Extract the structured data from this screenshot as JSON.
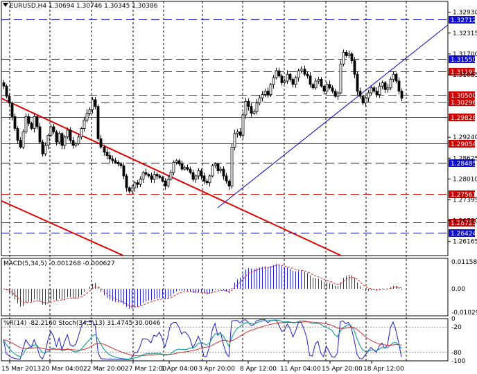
{
  "header": {
    "symbol": "EURUSD,H4",
    "open": "1.30694",
    "high": "1.30746",
    "low": "1.30345",
    "close": "1.30386"
  },
  "colors": {
    "red_line": "#e00000",
    "blue_line": "#0000cc",
    "red_tag": "#cc0000",
    "blue_tag": "#1010d0",
    "candle": "#000000",
    "macd_hist": "#2222dd",
    "macd_signal": "#dd2222",
    "wpr": "#1a1acc",
    "stoch_main": "#20a0a0",
    "stoch_signal": "#d03030"
  },
  "chart_data": [
    {
      "type": "candlestick",
      "title": "EURUSD,H4",
      "ylim": [
        1.2575,
        1.3325
      ],
      "price_axis_ticks": [
        "1.32930",
        "1.32315",
        "1.31700",
        "1.31085",
        "1.29240",
        "1.28625",
        "1.28010",
        "1.27395",
        "1.26780",
        "1.26165"
      ],
      "time_ticks": [
        "15 Mar 2013",
        "20 Mar 04:00",
        "22 Mar 20:00",
        "27 Mar 12:00",
        "1 Apr 04:00",
        "3 Apr 20:00",
        "8 Apr 12:00",
        "11 Apr 04:00",
        "15 Apr 20:00",
        "18 Apr 12:00"
      ],
      "horizontal_levels": [
        {
          "label": "1.32712",
          "value": 1.32712,
          "color": "blue"
        },
        {
          "label": "1.31550",
          "value": 1.3155,
          "color": "blue"
        },
        {
          "label": "1.31193",
          "value": 1.31193,
          "color": "red"
        },
        {
          "label": "1.30500",
          "value": 1.305,
          "color": "red"
        },
        {
          "label": "1.30296",
          "value": 1.30296,
          "color": "red"
        },
        {
          "label": "1.29828",
          "value": 1.29828,
          "color": "red"
        },
        {
          "label": "1.29054",
          "value": 1.29054,
          "color": "red"
        },
        {
          "label": "1.28485",
          "value": 1.28485,
          "color": "blue"
        },
        {
          "label": "1.27561",
          "value": 1.27561,
          "color": "red"
        },
        {
          "label": "1.26723",
          "value": 1.26723,
          "color": "red"
        },
        {
          "label": "1.26424",
          "value": 1.26424,
          "color": "blue"
        }
      ],
      "close_prices": [
        1.3075,
        1.3045,
        1.3025,
        1.2985,
        1.295,
        1.2915,
        1.2895,
        1.294,
        1.2985,
        1.2965,
        1.295,
        1.2985,
        1.2955,
        1.291,
        1.2875,
        1.29,
        1.293,
        1.2955,
        1.294,
        1.291,
        1.2935,
        1.29,
        1.2925,
        1.2945,
        1.2915,
        1.29,
        1.2905,
        1.2925,
        1.295,
        1.2975,
        1.2995,
        1.3005,
        1.3035,
        1.3015,
        1.292,
        1.2895,
        1.288,
        1.287,
        1.286,
        1.2855,
        1.285,
        1.2845,
        1.284,
        1.281,
        1.2775,
        1.2765,
        1.2775,
        1.279,
        1.2785,
        1.28,
        1.282,
        1.2815,
        1.281,
        1.28,
        1.2815,
        1.281,
        1.2805,
        1.2795,
        1.278,
        1.28,
        1.282,
        1.285,
        1.2855,
        1.2845,
        1.283,
        1.2835,
        1.283,
        1.282,
        1.28,
        1.281,
        1.2825,
        1.281,
        1.2795,
        1.279,
        1.281,
        1.284,
        1.2845,
        1.2825,
        1.283,
        1.281,
        1.2795,
        1.278,
        1.2895,
        1.2935,
        1.294,
        1.293,
        1.299,
        1.303,
        1.3015,
        1.2995,
        1.3,
        1.3025,
        1.304,
        1.305,
        1.306,
        1.305,
        1.308,
        1.31,
        1.312,
        1.3105,
        1.3085,
        1.309,
        1.311,
        1.3095,
        1.308,
        1.31,
        1.312,
        1.3125,
        1.311,
        1.3105,
        1.308,
        1.307,
        1.309,
        1.3095,
        1.3075,
        1.306,
        1.308,
        1.307,
        1.306,
        1.3045,
        1.3055,
        1.314,
        1.3175,
        1.3165,
        1.317,
        1.315,
        1.311,
        1.306,
        1.3045,
        1.3025,
        1.304,
        1.3055,
        1.307,
        1.306,
        1.305,
        1.3075,
        1.3085,
        1.3065,
        1.307,
        1.3095,
        1.311,
        1.309,
        1.306,
        1.3039
      ]
    },
    {
      "type": "line",
      "title": "MACD(5,34,5) -0.001268 -0.000627",
      "ylim": [
        -0.01029,
        0.011584
      ],
      "axis_labels": [
        "0.011584",
        "0.00",
        "-0.010290"
      ]
    },
    {
      "type": "line",
      "title": "%R(14) -82.2160 Stoch(34,5,13) 31.4745 30.0046",
      "ylim": [
        -100,
        0
      ],
      "axis_labels": [
        "0",
        "-20",
        "-80",
        "-100"
      ]
    }
  ]
}
